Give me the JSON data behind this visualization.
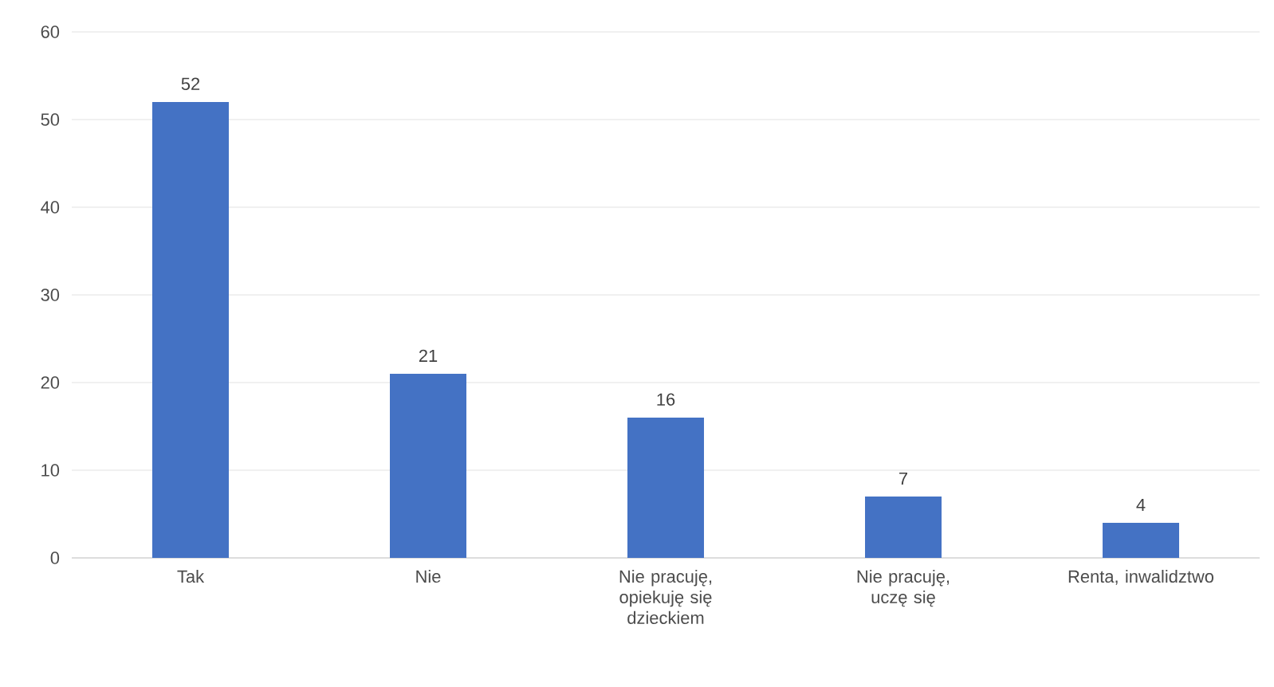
{
  "chart_data": {
    "type": "bar",
    "categories": [
      "Tak",
      "Nie",
      "Nie pracuję, opiekuję się dzieckiem",
      "Nie pracuję, uczę się",
      "Renta, inwalidztwo"
    ],
    "values": [
      52,
      21,
      16,
      7,
      4
    ],
    "color": "#4472c4",
    "ylim": [
      0,
      60
    ],
    "yticks": [
      0,
      10,
      20,
      30,
      40,
      50,
      60
    ],
    "grid": "y",
    "data_labels": true
  }
}
